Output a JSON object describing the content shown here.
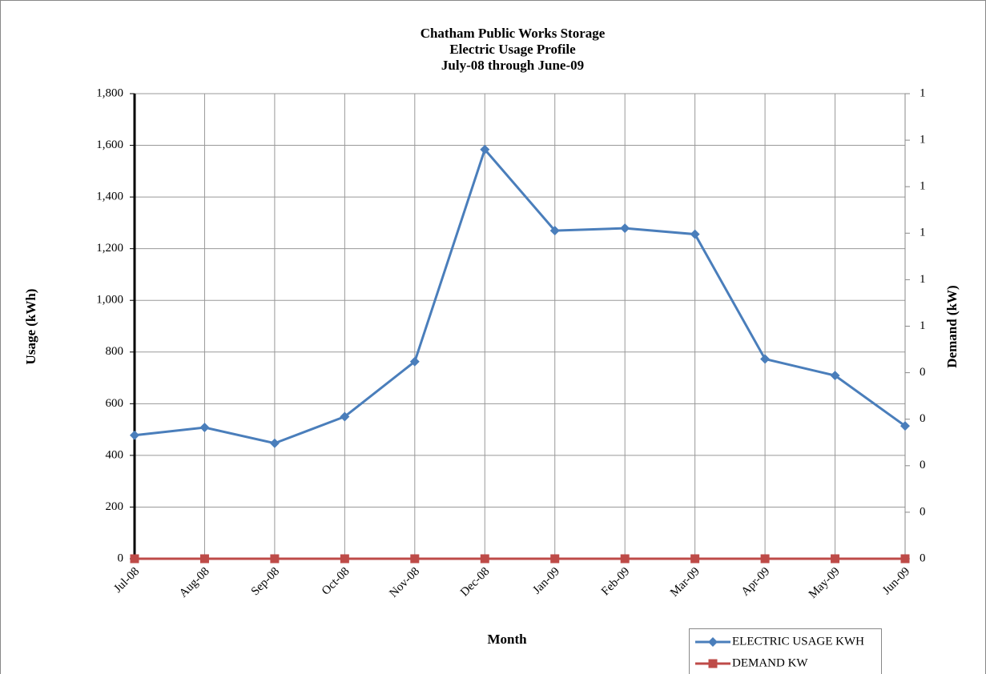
{
  "chart_data": {
    "type": "line",
    "title_lines": [
      "Chatham Public Works Storage",
      "Electric Usage Profile",
      "July-08 through June-09"
    ],
    "x_label": "Month",
    "y_label": "Usage (kWh)",
    "y2_label": "Demand (kW)",
    "categories": [
      "Jul-08",
      "Aug-08",
      "Sep-08",
      "Oct-08",
      "Nov-08",
      "Dec-08",
      "Jan-09",
      "Feb-09",
      "Mar-09",
      "Apr-09",
      "May-09",
      "Jun-09"
    ],
    "series": [
      {
        "name": "ELECTRIC USAGE KWH",
        "color": "#4a7ebb",
        "marker": "diamond",
        "values": [
          478,
          508,
          447,
          550,
          763,
          1584,
          1270,
          1279,
          1256,
          773,
          709,
          514
        ]
      },
      {
        "name": "DEMAND KW",
        "color": "#be4b48",
        "marker": "square",
        "axis": "y2",
        "values": [
          0,
          0,
          0,
          0,
          0,
          0,
          0,
          0,
          0,
          0,
          0,
          0
        ]
      }
    ],
    "ylim": [
      0,
      1800
    ],
    "yticks": [
      0,
      200,
      400,
      600,
      800,
      {
        "value": 1000,
        "label": "1,000"
      },
      {
        "value": 1200,
        "label": "1,200"
      },
      {
        "value": 1400,
        "label": "1,400"
      },
      {
        "value": 1600,
        "label": "1,600"
      },
      {
        "value": 1800,
        "label": "1,800"
      }
    ],
    "y2lim": [
      0,
      1
    ],
    "y2ticks": [
      0,
      {
        "value": 0.1,
        "label": "0"
      },
      {
        "value": 0.2,
        "label": "0"
      },
      {
        "value": 0.3,
        "label": "0"
      },
      {
        "value": 0.4,
        "label": "0"
      },
      {
        "value": 0.5,
        "label": "1"
      },
      {
        "value": 0.6,
        "label": "1"
      },
      {
        "value": 0.7,
        "label": "1"
      },
      {
        "value": 0.8,
        "label": "1"
      },
      {
        "value": 0.9,
        "label": "1"
      },
      1
    ],
    "grid": true,
    "legend": "bottom-right"
  }
}
